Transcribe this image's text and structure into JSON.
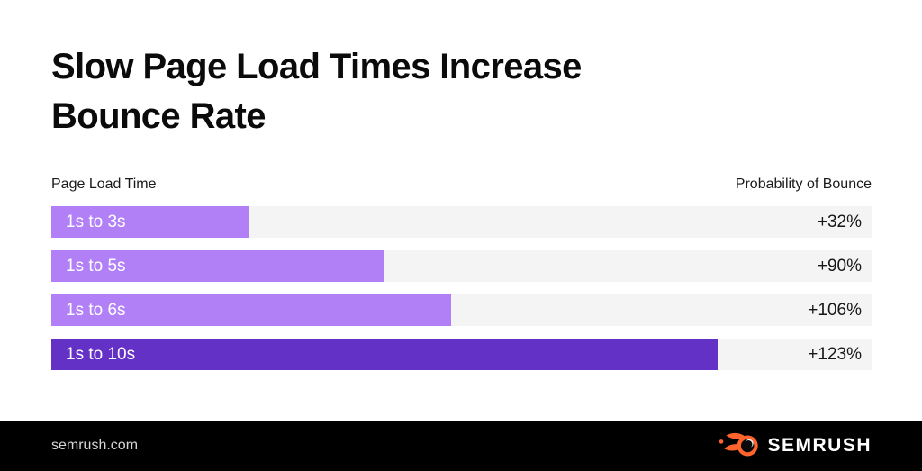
{
  "title": {
    "full": "Slow Page Load Times Increase Bounce Rate",
    "line1": "Slow Page Load Times Increase",
    "line2": "Bounce Rate"
  },
  "chart": {
    "left_header": "Page Load Time",
    "right_header": "Probability of Bounce"
  },
  "chart_data": {
    "type": "bar",
    "orientation": "horizontal",
    "title": "Slow Page Load Times Increase Bounce Rate",
    "ylabel": "Page Load Time",
    "xlabel": "Probability of Bounce",
    "categories": [
      "1s to 3s",
      "1s to 5s",
      "1s to 6s",
      "1s to 10s"
    ],
    "values": [
      32,
      90,
      106,
      123
    ],
    "value_labels": [
      "+32%",
      "+90%",
      "+106%",
      "+123%"
    ],
    "bar_widths_pct": [
      24.1,
      40.6,
      48.7,
      81.2
    ],
    "bar_colors": [
      "#b180f6",
      "#b180f6",
      "#b180f6",
      "#6331c5"
    ],
    "track_color": "#f4f4f5",
    "grid": false,
    "legend": false
  },
  "footer": {
    "website": "semrush.com",
    "brand": "SEMRUSH",
    "brand_color": "#ff642d",
    "background": "#000000"
  },
  "colors": {
    "page_background": "#ffffff",
    "title_text": "#0b0b0b",
    "header_text": "#1a1a1a",
    "value_text": "#161616",
    "bar_label_text": "#ffffff",
    "footer_text": "#d6d6d6"
  }
}
